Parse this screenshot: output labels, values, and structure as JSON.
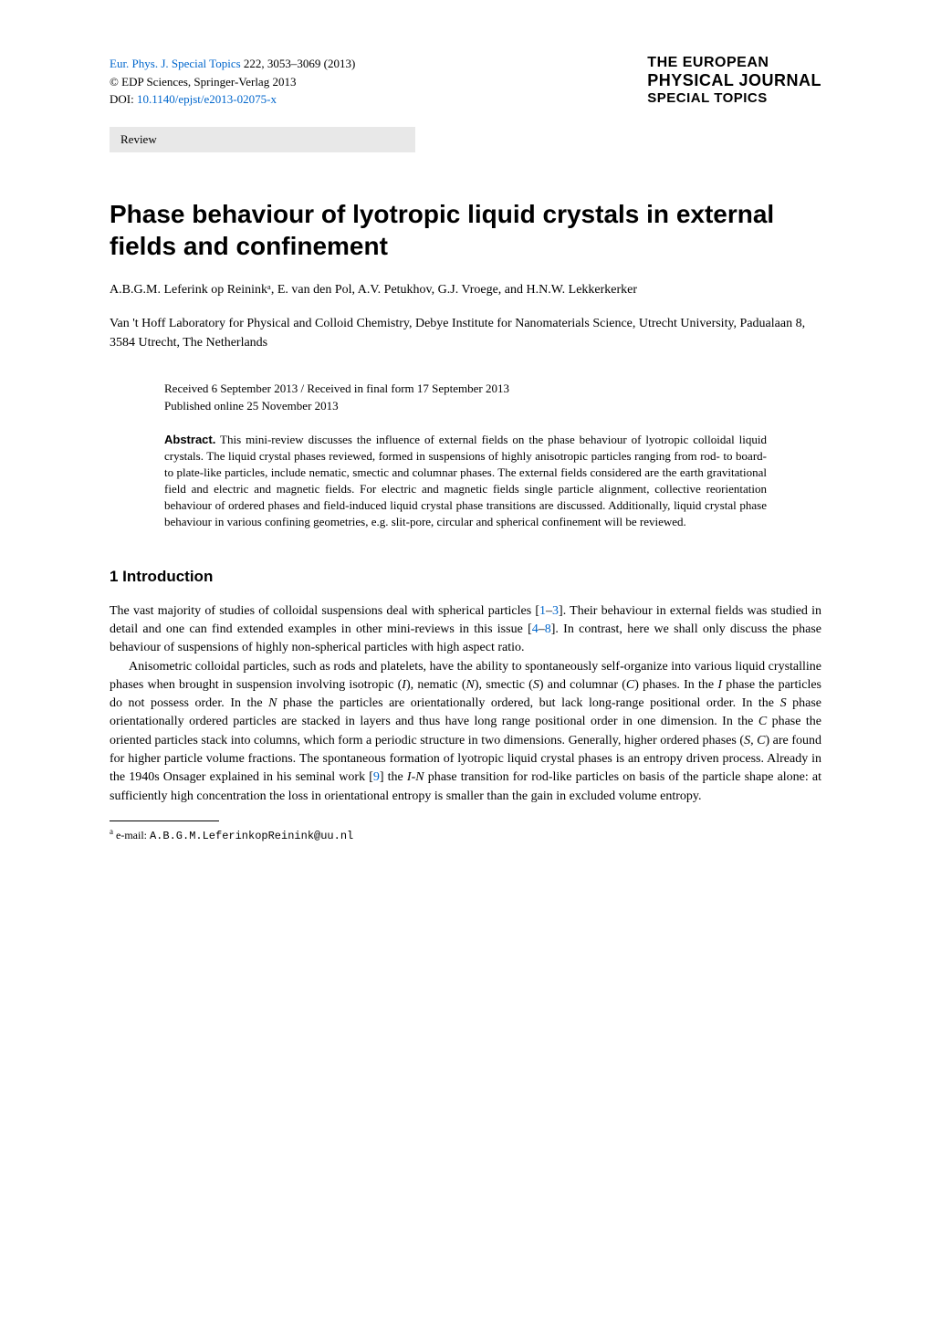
{
  "header": {
    "journal_ref_link": "Eur. Phys. J. Special Topics",
    "journal_ref_rest": " 222, 3053–3069 (2013)",
    "copyright": "© EDP Sciences, Springer-Verlag 2013",
    "doi_label": "DOI: ",
    "doi_link": "10.1140/epjst/e2013-02075-x",
    "journal_name_1": "THE EUROPEAN",
    "journal_name_2": "PHYSICAL JOURNAL",
    "journal_name_3": "SPECIAL TOPICS"
  },
  "review_label": "Review",
  "title": "Phase behaviour of lyotropic liquid crystals in external fields and confinement",
  "authors": "A.B.G.M. Leferink op Reininkᵃ, E. van den Pol, A.V. Petukhov, G.J. Vroege, and H.N.W. Lekkerkerker",
  "affiliation": "Van 't Hoff Laboratory for Physical and Colloid Chemistry, Debye Institute for Nanomaterials Science, Utrecht University, Padualaan 8, 3584 Utrecht, The Netherlands",
  "dates": {
    "received": "Received 6 September 2013 / Received in final form 17 September 2013",
    "published": "Published online 25 November 2013"
  },
  "abstract": {
    "label": "Abstract.",
    "text": " This mini-review discusses the influence of external fields on the phase behaviour of lyotropic colloidal liquid crystals. The liquid crystal phases reviewed, formed in suspensions of highly anisotropic particles ranging from rod- to board- to plate-like particles, include nematic, smectic and columnar phases. The external fields considered are the earth gravitational field and electric and magnetic fields. For electric and magnetic fields single particle alignment, collective reorientation behaviour of ordered phases and field-induced liquid crystal phase transitions are discussed. Additionally, liquid crystal phase behaviour in various confining geometries, e.g. slit-pore, circular and spherical confinement will be reviewed."
  },
  "section1": {
    "heading": "1 Introduction",
    "p1_a": "The vast majority of studies of colloidal suspensions deal with spherical particles [",
    "p1_ref1": "1",
    "p1_b": "–",
    "p1_ref2": "3",
    "p1_c": "]. Their behaviour in external fields was studied in detail and one can find extended examples in other mini-reviews in this issue [",
    "p1_ref3": "4",
    "p1_d": "–",
    "p1_ref4": "8",
    "p1_e": "]. In contrast, here we shall only discuss the phase behaviour of suspensions of highly non-spherical particles with high aspect ratio.",
    "p2_a": "Anisometric colloidal particles, such as rods and platelets, have the ability to spontaneously self-organize into various liquid crystalline phases when brought in suspension involving isotropic (",
    "p2_I1": "I",
    "p2_b": "), nematic (",
    "p2_N1": "N",
    "p2_c": "), smectic (",
    "p2_S1": "S",
    "p2_d": ") and columnar (",
    "p2_C1": "C",
    "p2_e": ") phases. In the ",
    "p2_I2": "I",
    "p2_f": " phase the particles do not possess order. In the ",
    "p2_N2": "N",
    "p2_g": " phase the particles are orientationally ordered, but lack long-range positional order. In the ",
    "p2_S2": "S",
    "p2_h": " phase orientationally ordered particles are stacked in layers and thus have long range positional order in one dimension. In the ",
    "p2_C2": "C",
    "p2_i": " phase the oriented particles stack into columns, which form a periodic structure in two dimensions. Generally, higher ordered phases (",
    "p2_S3": "S, C",
    "p2_j": ") are found for higher particle volume fractions. The spontaneous formation of lyotropic liquid crystal phases is an entropy driven process. Already in the 1940s Onsager explained in his seminal work [",
    "p2_ref1": "9",
    "p2_k": "] the ",
    "p2_IN": "I",
    "p2_l": "-",
    "p2_N3": "N",
    "p2_m": " phase transition for rod-like particles on basis of the particle shape alone: at sufficiently high concentration the loss in orientational entropy is smaller than the gain in excluded volume entropy."
  },
  "footnote": {
    "marker": "a",
    "label": " e-mail: ",
    "email": "A.B.G.M.LeferinkopReinink@uu.nl"
  },
  "colors": {
    "link": "#0066cc",
    "review_bg": "#e8e8e8",
    "text": "#000000",
    "background": "#ffffff"
  },
  "fonts": {
    "body_family": "Georgia, Times New Roman, serif",
    "heading_family": "Arial, Helvetica, sans-serif",
    "body_size_pt": 10.5,
    "title_size_pt": 21,
    "abstract_size_pt": 9.5,
    "footnote_size_pt": 9
  }
}
